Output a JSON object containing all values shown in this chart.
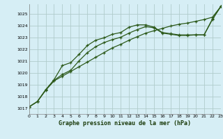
{
  "title": "Graphe pression niveau de la mer (hPa)",
  "bg_color": "#d6eef5",
  "grid_color": "#b0cccc",
  "line_color": "#2d5a1b",
  "xlim": [
    0,
    23
  ],
  "ylim": [
    1016.5,
    1025.8
  ],
  "yticks": [
    1017,
    1018,
    1019,
    1020,
    1021,
    1022,
    1023,
    1024,
    1025
  ],
  "xticks": [
    0,
    1,
    2,
    3,
    4,
    5,
    6,
    7,
    8,
    9,
    10,
    11,
    12,
    13,
    14,
    15,
    16,
    17,
    18,
    19,
    20,
    21,
    22,
    23
  ],
  "line1_x": [
    0,
    1,
    2,
    3,
    4,
    5,
    6,
    7,
    8,
    9,
    10,
    11,
    12,
    13,
    14,
    15,
    16,
    17,
    18,
    19,
    20,
    21,
    22,
    23
  ],
  "line1_y": [
    1017.1,
    1017.55,
    1018.5,
    1019.3,
    1019.7,
    1020.1,
    1020.5,
    1020.9,
    1021.3,
    1021.7,
    1022.1,
    1022.4,
    1022.75,
    1023.05,
    1023.35,
    1023.55,
    1023.75,
    1023.95,
    1024.1,
    1024.2,
    1024.35,
    1024.5,
    1024.7,
    1025.6
  ],
  "line2_x": [
    0,
    1,
    2,
    3,
    4,
    5,
    6,
    7,
    8,
    9,
    10,
    11,
    12,
    13,
    14,
    15,
    16,
    17,
    18,
    19,
    20,
    21,
    22,
    23
  ],
  "line2_y": [
    1017.1,
    1017.55,
    1018.55,
    1019.4,
    1020.6,
    1020.85,
    1021.55,
    1022.3,
    1022.75,
    1022.95,
    1023.25,
    1023.4,
    1023.85,
    1024.05,
    1024.05,
    1023.85,
    1023.4,
    1023.3,
    1023.2,
    1023.2,
    1023.2,
    1023.2,
    1024.55,
    1025.6
  ],
  "line3_x": [
    0,
    1,
    2,
    3,
    4,
    5,
    6,
    7,
    8,
    9,
    10,
    11,
    12,
    13,
    14,
    15,
    16,
    17,
    18,
    19,
    20,
    21,
    22,
    23
  ],
  "line3_y": [
    1017.1,
    1017.55,
    1018.55,
    1019.35,
    1019.85,
    1020.2,
    1021.0,
    1021.7,
    1022.2,
    1022.55,
    1022.8,
    1023.0,
    1023.35,
    1023.65,
    1023.9,
    1023.8,
    1023.35,
    1023.25,
    1023.15,
    1023.15,
    1023.2,
    1023.2,
    1024.5,
    1025.6
  ]
}
